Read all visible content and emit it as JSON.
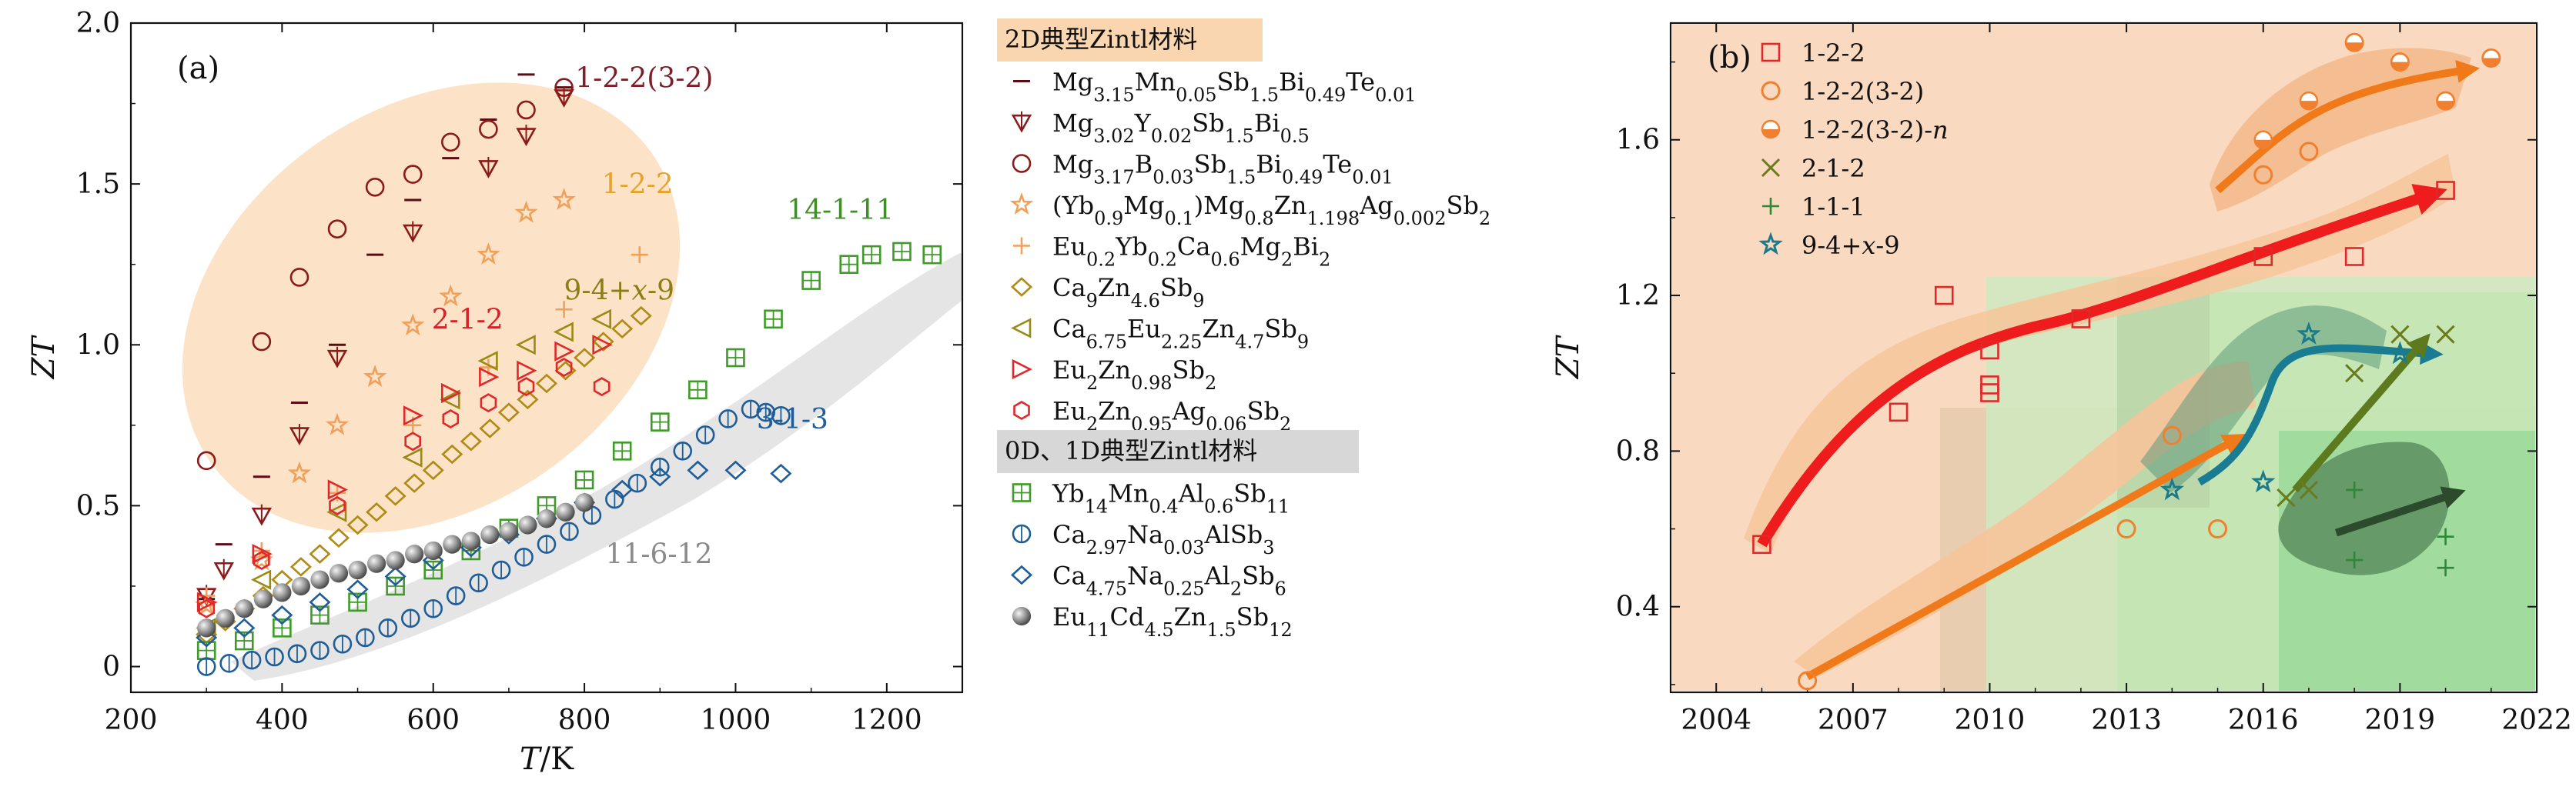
{
  "chart_data": [
    {
      "type": "scatter",
      "panel_label": "(a)",
      "xlabel": "T/K",
      "ylabel": "ZT",
      "xlim": [
        200,
        1300
      ],
      "ylim": [
        -0.08,
        2.0
      ],
      "xticks": [
        "200",
        "400",
        "600",
        "800",
        "1000",
        "1200"
      ],
      "yticks": [
        "0",
        "0.5",
        "1.0",
        "1.5",
        "2.0"
      ],
      "legend_header_2d": "2D典型Zintl材料",
      "legend_header_01d": "0D、1D典型Zintl材料",
      "annotations": [
        {
          "text": "1-2-2(3-2)",
          "x": 900,
          "y": 1.8,
          "color": "#7b1f2a"
        },
        {
          "text": "1-2-2",
          "x": 935,
          "y": 1.47,
          "color": "#e4a32c"
        },
        {
          "text": "9-4+x-9",
          "x": 885,
          "y": 1.14,
          "color": "#8b7e16"
        },
        {
          "text": "2-1-2",
          "x": 710,
          "y": 1.05,
          "color": "#d4232a"
        },
        {
          "text": "14-1-11",
          "x": 1180,
          "y": 1.39,
          "color": "#3f8e28"
        },
        {
          "text": "3-1-3",
          "x": 1140,
          "y": 0.74,
          "color": "#1f5d99"
        },
        {
          "text": "11-6-12",
          "x": 940,
          "y": 0.32,
          "color": "#8a8a8a"
        }
      ],
      "series": [
        {
          "name": "Mg3.15Mn0.05Sb1.5Bi0.49Te0.01",
          "label_html": "Mg<tspan baseline-shift='sub' font-size='24'>3.15</tspan>Mn<tspan baseline-shift='sub' font-size='24'>0.05</tspan>Sb<tspan baseline-shift='sub' font-size='24'>1.5</tspan>Bi<tspan baseline-shift='sub' font-size='24'>0.49</tspan>Te<tspan baseline-shift='sub' font-size='24'>0.01</tspan>",
          "marker": "dash",
          "color": "#5a0d14",
          "x": [
            300,
            323,
            373,
            423,
            473,
            523,
            573,
            623,
            673,
            723,
            773
          ],
          "y": [
            0.21,
            0.38,
            0.59,
            0.82,
            1.0,
            1.28,
            1.45,
            1.58,
            1.7,
            1.84,
            1.8
          ]
        },
        {
          "name": "Mg3.02Y0.02Sb1.5Bi0.5",
          "label_html": "Mg<tspan baseline-shift='sub' font-size='24'>3.02</tspan>Y<tspan baseline-shift='sub' font-size='24'>0.02</tspan>Sb<tspan baseline-shift='sub' font-size='24'>1.5</tspan>Bi<tspan baseline-shift='sub' font-size='24'>0.5</tspan>",
          "marker": "triangle-down",
          "color": "#8b1a1a",
          "x": [
            300,
            323,
            373,
            423,
            473,
            573,
            673,
            723,
            773
          ],
          "y": [
            0.22,
            0.3,
            0.47,
            0.72,
            0.96,
            1.35,
            1.55,
            1.65,
            1.77
          ]
        },
        {
          "name": "Mg3.17B0.03Sb1.5Bi0.49Te0.01",
          "label_html": "Mg<tspan baseline-shift='sub' font-size='24'>3.17</tspan>B<tspan baseline-shift='sub' font-size='24'>0.03</tspan>Sb<tspan baseline-shift='sub' font-size='24'>1.5</tspan>Bi<tspan baseline-shift='sub' font-size='24'>0.49</tspan>Te<tspan baseline-shift='sub' font-size='24'>0.01</tspan>",
          "marker": "circle",
          "color": "#8b1a1a",
          "x": [
            300,
            373,
            423,
            473,
            523,
            573,
            623,
            673,
            723,
            773
          ],
          "y": [
            0.64,
            1.01,
            1.21,
            1.36,
            1.49,
            1.53,
            1.63,
            1.67,
            1.73,
            1.8
          ]
        },
        {
          "name": "(Yb0.9Mg0.1)Mg0.8Zn1.198Ag0.002Sb2",
          "label_html": "(Yb<tspan baseline-shift='sub' font-size='24'>0.9</tspan>Mg<tspan baseline-shift='sub' font-size='24'>0.1</tspan>)Mg<tspan baseline-shift='sub' font-size='24'>0.8</tspan>Zn<tspan baseline-shift='sub' font-size='24'>1.198</tspan>Ag<tspan baseline-shift='sub' font-size='24'>0.002</tspan>Sb<tspan baseline-shift='sub' font-size='24'>2</tspan>",
          "marker": "star",
          "color": "#f0a05a",
          "x": [
            300,
            373,
            423,
            473,
            523,
            573,
            623,
            673,
            723,
            773
          ],
          "y": [
            0.19,
            0.33,
            0.6,
            0.75,
            0.9,
            1.06,
            1.15,
            1.28,
            1.41,
            1.45
          ]
        },
        {
          "name": "Eu0.2Yb0.2Ca0.6Mg2Bi2",
          "label_html": "Eu<tspan baseline-shift='sub' font-size='24'>0.2</tspan>Yb<tspan baseline-shift='sub' font-size='24'>0.2</tspan>Ca<tspan baseline-shift='sub' font-size='24'>0.6</tspan>Mg<tspan baseline-shift='sub' font-size='24'>2</tspan>Bi<tspan baseline-shift='sub' font-size='24'>2</tspan>",
          "marker": "plus",
          "color": "#f0a05a",
          "x": [
            300,
            373,
            473,
            573,
            673,
            773,
            873
          ],
          "y": [
            0.22,
            0.36,
            0.54,
            0.75,
            0.93,
            1.11,
            1.28
          ]
        },
        {
          "name": "Ca9Zn4.6Sb9",
          "label_html": "Ca<tspan baseline-shift='sub' font-size='24'>9</tspan>Zn<tspan baseline-shift='sub' font-size='24'>4.6</tspan>Sb<tspan baseline-shift='sub' font-size='24'>9</tspan>",
          "marker": "diamond",
          "color": "#b08a14",
          "x": [
            300,
            325,
            350,
            375,
            400,
            425,
            450,
            475,
            500,
            525,
            550,
            575,
            600,
            625,
            650,
            675,
            700,
            725,
            750,
            775,
            800,
            825,
            850,
            875
          ],
          "y": [
            0.1,
            0.14,
            0.18,
            0.22,
            0.27,
            0.31,
            0.35,
            0.4,
            0.44,
            0.48,
            0.53,
            0.57,
            0.61,
            0.66,
            0.7,
            0.74,
            0.79,
            0.83,
            0.88,
            0.92,
            0.96,
            1.01,
            1.05,
            1.09
          ]
        },
        {
          "name": "Ca6.75Eu2.25Zn4.7Sb9",
          "label_html": "Ca<tspan baseline-shift='sub' font-size='24'>6.75</tspan>Eu<tspan baseline-shift='sub' font-size='24'>2.25</tspan>Zn<tspan baseline-shift='sub' font-size='24'>4.7</tspan>Sb<tspan baseline-shift='sub' font-size='24'>9</tspan>",
          "marker": "triangle-left",
          "color": "#9a8a14",
          "x": [
            300,
            373,
            473,
            573,
            623,
            673,
            723,
            773,
            823
          ],
          "y": [
            0.12,
            0.27,
            0.48,
            0.65,
            0.83,
            0.95,
            1.0,
            1.04,
            1.08
          ]
        },
        {
          "name": "Eu2Zn0.98Sb2",
          "label_html": "Eu<tspan baseline-shift='sub' font-size='24'>2</tspan>Zn<tspan baseline-shift='sub' font-size='24'>0.98</tspan>Sb<tspan baseline-shift='sub' font-size='24'>2</tspan>",
          "marker": "triangle-right",
          "color": "#e0282a",
          "x": [
            300,
            373,
            473,
            573,
            623,
            673,
            723,
            773,
            823
          ],
          "y": [
            0.2,
            0.35,
            0.55,
            0.78,
            0.85,
            0.9,
            0.92,
            0.98,
            1.0
          ]
        },
        {
          "name": "Eu2Zn0.95Ag0.06Sb2",
          "label_html": "Eu<tspan baseline-shift='sub' font-size='24'>2</tspan>Zn<tspan baseline-shift='sub' font-size='24'>0.95</tspan>Ag<tspan baseline-shift='sub' font-size='24'>0.06</tspan>Sb<tspan baseline-shift='sub' font-size='24'>2</tspan>",
          "marker": "hexagon",
          "color": "#e0282a",
          "x": [
            300,
            373,
            473,
            573,
            623,
            673,
            723,
            773,
            823
          ],
          "y": [
            0.18,
            0.33,
            0.5,
            0.7,
            0.77,
            0.82,
            0.87,
            0.93,
            0.87
          ]
        },
        {
          "name": "Yb14Mn0.4Al0.6Sb11",
          "label_html": "Yb<tspan baseline-shift='sub' font-size='24'>14</tspan>Mn<tspan baseline-shift='sub' font-size='24'>0.4</tspan>Al<tspan baseline-shift='sub' font-size='24'>0.6</tspan>Sb<tspan baseline-shift='sub' font-size='24'>11</tspan>",
          "marker": "square-cross",
          "color": "#3f9a2a",
          "x": [
            300,
            350,
            400,
            450,
            500,
            550,
            600,
            650,
            700,
            750,
            800,
            850,
            900,
            950,
            1000,
            1050,
            1100,
            1150,
            1180,
            1220,
            1260
          ],
          "y": [
            0.05,
            0.08,
            0.12,
            0.16,
            0.2,
            0.25,
            0.3,
            0.36,
            0.43,
            0.5,
            0.58,
            0.67,
            0.76,
            0.86,
            0.96,
            1.08,
            1.2,
            1.25,
            1.28,
            1.29,
            1.28
          ]
        },
        {
          "name": "Ca2.97Na0.03AlSb3",
          "label_html": "Ca<tspan baseline-shift='sub' font-size='24'>2.97</tspan>Na<tspan baseline-shift='sub' font-size='24'>0.03</tspan>AlSb<tspan baseline-shift='sub' font-size='24'>3</tspan>",
          "marker": "circle-bar",
          "color": "#1f5d99",
          "x": [
            300,
            330,
            360,
            390,
            420,
            450,
            480,
            510,
            540,
            570,
            600,
            630,
            660,
            690,
            720,
            750,
            780,
            810,
            840,
            870,
            900,
            930,
            960,
            990,
            1020,
            1040,
            1060
          ],
          "y": [
            0.0,
            0.01,
            0.02,
            0.03,
            0.04,
            0.05,
            0.07,
            0.09,
            0.12,
            0.15,
            0.18,
            0.22,
            0.26,
            0.3,
            0.34,
            0.38,
            0.42,
            0.47,
            0.52,
            0.57,
            0.62,
            0.67,
            0.72,
            0.77,
            0.8,
            0.79,
            0.78
          ]
        },
        {
          "name": "Ca4.75Na0.25Al2Sb6",
          "label_html": "Ca<tspan baseline-shift='sub' font-size='24'>4.75</tspan>Na<tspan baseline-shift='sub' font-size='24'>0.25</tspan>Al<tspan baseline-shift='sub' font-size='24'>2</tspan>Sb<tspan baseline-shift='sub' font-size='24'>6</tspan>",
          "marker": "diamond-open",
          "color": "#1f5d99",
          "x": [
            300,
            350,
            400,
            450,
            500,
            550,
            600,
            650,
            700,
            750,
            800,
            850,
            900,
            950,
            1000,
            1060
          ],
          "y": [
            0.09,
            0.12,
            0.16,
            0.2,
            0.24,
            0.28,
            0.33,
            0.37,
            0.41,
            0.46,
            0.51,
            0.55,
            0.59,
            0.61,
            0.61,
            0.6
          ]
        },
        {
          "name": "Eu11Cd4.5Zn1.5Sb12",
          "label_html": "Eu<tspan baseline-shift='sub' font-size='24'>11</tspan>Cd<tspan baseline-shift='sub' font-size='24'>4.5</tspan>Zn<tspan baseline-shift='sub' font-size='24'>1.5</tspan>Sb<tspan baseline-shift='sub' font-size='24'>12</tspan>",
          "marker": "sphere",
          "color": "#8c8c8c",
          "x": [
            300,
            325,
            350,
            375,
            400,
            425,
            450,
            475,
            500,
            525,
            550,
            575,
            600,
            625,
            650,
            675,
            700,
            725,
            750,
            775,
            800
          ],
          "y": [
            0.12,
            0.15,
            0.18,
            0.21,
            0.23,
            0.25,
            0.27,
            0.29,
            0.3,
            0.32,
            0.33,
            0.35,
            0.36,
            0.38,
            0.39,
            0.41,
            0.42,
            0.44,
            0.46,
            0.48,
            0.51
          ]
        }
      ]
    },
    {
      "type": "scatter",
      "panel_label": "(b)",
      "xlabel": "",
      "ylabel": "ZT",
      "xlim": [
        2003,
        2022
      ],
      "ylim": [
        0.18,
        1.9
      ],
      "xticks": [
        "2004",
        "2007",
        "2010",
        "2013",
        "2016",
        "2019",
        "2022"
      ],
      "yticks": [
        "0.4",
        "0.8",
        "1.2",
        "1.6"
      ],
      "series": [
        {
          "name": "1-2-2",
          "label_html": "1-2-2",
          "marker": "square-open",
          "color": "#e0282a",
          "x": [
            2005,
            2008,
            2009,
            2010,
            2010,
            2010,
            2012,
            2016,
            2018,
            2020
          ],
          "y": [
            0.56,
            0.9,
            1.2,
            1.06,
            0.97,
            0.95,
            1.14,
            1.3,
            1.3,
            1.47
          ]
        },
        {
          "name": "1-2-2(3-2)",
          "label_html": "1-2-2(3-2)",
          "marker": "circle-open",
          "color": "#f08030",
          "x": [
            2006,
            2013,
            2014,
            2015,
            2016,
            2017,
            2018,
            2019,
            2020,
            2021
          ],
          "y": [
            0.21,
            0.6,
            0.84,
            0.6,
            1.51,
            1.57,
            1.85,
            1.8,
            1.7,
            1.81
          ]
        },
        {
          "name": "1-2-2(3-2)-n",
          "label_html": "1-2-2(3-2)-<tspan font-style='italic'>n</tspan>",
          "marker": "circle-half",
          "color": "#f08030",
          "x": [
            2016,
            2017,
            2018,
            2019,
            2020,
            2021
          ],
          "y": [
            1.6,
            1.7,
            1.85,
            1.8,
            1.7,
            1.81
          ]
        },
        {
          "name": "2-1-2",
          "label_html": "2-1-2",
          "marker": "x",
          "color": "#6b7a1a",
          "x": [
            2016.5,
            2017,
            2018,
            2019,
            2020
          ],
          "y": [
            0.68,
            0.7,
            1.0,
            1.1,
            1.1
          ]
        },
        {
          "name": "1-1-1",
          "label_html": "1-1-1",
          "marker": "plus",
          "color": "#2a8a3a",
          "x": [
            2018,
            2018,
            2020,
            2020
          ],
          "y": [
            0.7,
            0.52,
            0.58,
            0.5
          ]
        },
        {
          "name": "9-4+x-9",
          "label_html": "9-4+<tspan font-style='italic'>x</tspan>-9",
          "marker": "star-open",
          "color": "#1a7a8a",
          "x": [
            2014,
            2016,
            2017,
            2019
          ],
          "y": [
            0.7,
            0.72,
            1.1,
            1.05
          ]
        }
      ]
    }
  ]
}
